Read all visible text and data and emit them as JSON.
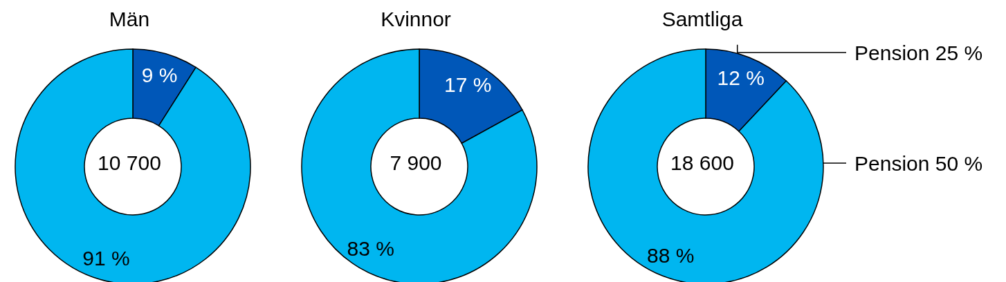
{
  "chart_data": [
    {
      "type": "donut",
      "title": "Män",
      "categories": [
        null,
        null
      ],
      "values": [
        9,
        91
      ],
      "colors": [
        "#0057b8",
        "#00b6f0"
      ],
      "value_labels": [
        "9 %",
        "91 %"
      ],
      "annotations": [
        "10 700"
      ]
    },
    {
      "type": "donut",
      "title": "Kvinnor",
      "categories": [
        null,
        null
      ],
      "values": [
        17,
        83
      ],
      "colors": [
        "#0057b8",
        "#00b6f0"
      ],
      "value_labels": [
        "17 %",
        "83 %"
      ],
      "annotations": [
        "7 900"
      ]
    },
    {
      "type": "donut",
      "title": "Samtliga",
      "categories": [
        "Pension 25 %",
        "Pension 50 %"
      ],
      "values": [
        12,
        88
      ],
      "colors": [
        "#0057b8",
        "#00b6f0"
      ],
      "value_labels": [
        "12 %",
        "88 %"
      ],
      "annotations": [
        "18 600"
      ]
    }
  ]
}
